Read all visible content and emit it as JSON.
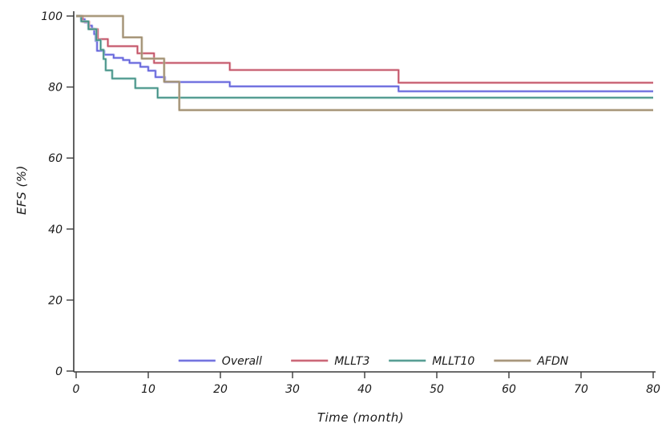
{
  "figure": {
    "background": "#ffffff",
    "axis_color": "#3a3a3a",
    "text_color": "#1a1a1a"
  },
  "chart_data": {
    "type": "line",
    "subtype": "kaplan-meier-step",
    "title": "",
    "xlabel": "Time (month)",
    "ylabel": "EFS (%)",
    "xlim": [
      0,
      80
    ],
    "ylim": [
      0,
      100
    ],
    "x_ticks": [
      "0",
      "10",
      "20",
      "30",
      "40",
      "50",
      "60",
      "70",
      "80"
    ],
    "y_ticks": [
      "0",
      "20",
      "40",
      "60",
      "80",
      "100"
    ],
    "grid": false,
    "legend_position": "bottom-center-inside",
    "series": [
      {
        "name": "Overall",
        "color": "#5f5fd8",
        "halo": "#a8a8f2",
        "points": [
          [
            0,
            100
          ],
          [
            0.7,
            99.1
          ],
          [
            1.2,
            98.2
          ],
          [
            1.7,
            97.3
          ],
          [
            2.2,
            96.4
          ],
          [
            2.5,
            94.9
          ],
          [
            2.7,
            93.0
          ],
          [
            2.9,
            90.2
          ],
          [
            3.9,
            89.1
          ],
          [
            5.2,
            88.2
          ],
          [
            6.5,
            87.6
          ],
          [
            7.4,
            86.8
          ],
          [
            8.9,
            85.7
          ],
          [
            10,
            84.6
          ],
          [
            11,
            82.8
          ],
          [
            12.3,
            81.4
          ],
          [
            21.3,
            80.2
          ],
          [
            44.7,
            78.8
          ],
          [
            80,
            78.8
          ]
        ]
      },
      {
        "name": "MLLT3",
        "color": "#bf5064",
        "halo": "#e5a0ab",
        "points": [
          [
            0,
            100
          ],
          [
            0.9,
            98.4
          ],
          [
            1.8,
            96.3
          ],
          [
            3,
            93.5
          ],
          [
            4.4,
            91.5
          ],
          [
            8.5,
            89.5
          ],
          [
            10.8,
            86.8
          ],
          [
            21.3,
            84.8
          ],
          [
            44.7,
            81.2
          ],
          [
            80,
            81.2
          ]
        ]
      },
      {
        "name": "MLLT10",
        "color": "#3f8e83",
        "halo": "#93c6be",
        "points": [
          [
            0,
            100
          ],
          [
            0.7,
            98.5
          ],
          [
            1.7,
            96.3
          ],
          [
            2.8,
            93.2
          ],
          [
            3.4,
            90.5
          ],
          [
            3.8,
            87.9
          ],
          [
            4.1,
            84.7
          ],
          [
            5,
            82.4
          ],
          [
            8.2,
            79.7
          ],
          [
            11.3,
            77.0
          ],
          [
            80,
            77.0
          ]
        ]
      },
      {
        "name": "AFDN",
        "color": "#9b8a6c",
        "halo": "#c4b59e",
        "points": [
          [
            0,
            100
          ],
          [
            6.5,
            94.0
          ],
          [
            9.1,
            88.0
          ],
          [
            12.2,
            81.5
          ],
          [
            14.3,
            73.5
          ],
          [
            80,
            73.5
          ]
        ]
      }
    ]
  }
}
